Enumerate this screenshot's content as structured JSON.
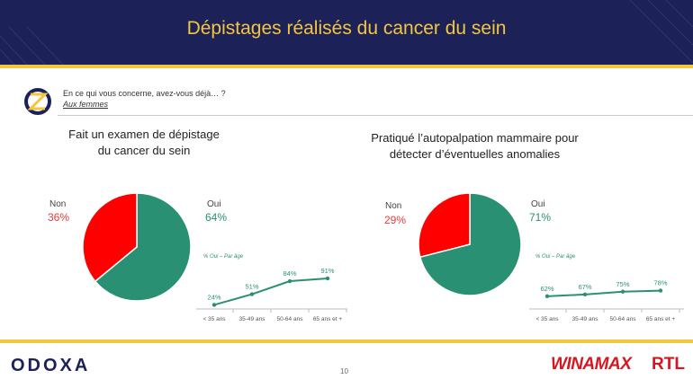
{
  "header": {
    "title": "Dépistages réalisés du cancer du sein"
  },
  "question": {
    "text": "En ce qui vous concerne, avez-vous déjà… ?",
    "sub": "Aux femmes"
  },
  "charts": [
    {
      "title": "Fait un examen de dépistage\ndu cancer du sein",
      "non_label": "Non",
      "non_pct": "36%",
      "oui_label": "Oui",
      "oui_pct": "64%",
      "mini_label": "% Oui – Par âge"
    },
    {
      "title": "Pratiqué l’autopalpation mammaire pour\ndétecter d’éventuelles anomalies",
      "non_label": "Non",
      "non_pct": "29%",
      "oui_label": "Oui",
      "oui_pct": "71%",
      "mini_label": "% Oui – Par âge"
    }
  ],
  "chart_data": [
    {
      "type": "pie",
      "title": "Fait un examen de dépistage du cancer du sein",
      "categories": [
        "Oui",
        "Non"
      ],
      "values": [
        64,
        36
      ],
      "colors": [
        "#2a9073",
        "#ff0000"
      ]
    },
    {
      "type": "line",
      "title": "% Oui – Par âge",
      "categories": [
        "< 35 ans",
        "35-49 ans",
        "50-64 ans",
        "65 ans et +"
      ],
      "values": [
        24,
        51,
        84,
        91
      ],
      "value_labels": [
        "24%",
        "51%",
        "84%",
        "91%"
      ],
      "ylim": [
        0,
        100
      ]
    },
    {
      "type": "pie",
      "title": "Pratiqué l’autopalpation mammaire pour détecter d’éventuelles anomalies",
      "categories": [
        "Oui",
        "Non"
      ],
      "values": [
        71,
        29
      ],
      "colors": [
        "#2a9073",
        "#ff0000"
      ]
    },
    {
      "type": "line",
      "title": "% Oui – Par âge",
      "categories": [
        "< 35 ans",
        "35-49 ans",
        "50-64 ans",
        "65 ans et +"
      ],
      "values": [
        62,
        67,
        75,
        78
      ],
      "value_labels": [
        "62%",
        "67%",
        "75%",
        "78%"
      ],
      "ylim": [
        0,
        100
      ]
    }
  ],
  "footer": {
    "logo_left": "ODOXA",
    "page": "10",
    "logo_winamax": "WINAMAX",
    "logo_rtl": "RTL"
  },
  "colors": {
    "navy": "#1c2157",
    "gold": "#f3c63d",
    "green": "#2a9073",
    "red": "#ff0000"
  }
}
